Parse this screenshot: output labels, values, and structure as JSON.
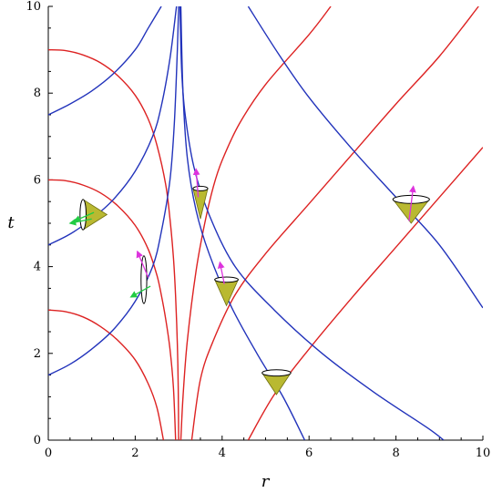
{
  "chart_data": {
    "type": "line",
    "title": "",
    "xlabel": "r",
    "ylabel": "t",
    "xlim": [
      0,
      10
    ],
    "ylim": [
      0,
      10
    ],
    "x_ticks": [
      "0",
      "2",
      "4",
      "6",
      "8",
      "10"
    ],
    "y_ticks": [
      "0",
      "2",
      "4",
      "6",
      "8",
      "10"
    ],
    "grid": false,
    "legend": "none",
    "colors": {
      "red": "#dd2222",
      "blue": "#2233bb",
      "cone_fill": "#b9b931",
      "arrow_green": "#22cc44",
      "arrow_magenta": "#dd33dd"
    },
    "horizon_r": 3,
    "series": [
      {
        "color": "red",
        "points": [
          [
            0,
            9.0
          ],
          [
            0.4,
            8.98
          ],
          [
            0.8,
            8.88
          ],
          [
            1.2,
            8.7
          ],
          [
            1.6,
            8.4
          ],
          [
            2.0,
            7.95
          ],
          [
            2.3,
            7.4
          ],
          [
            2.5,
            6.8
          ],
          [
            2.7,
            5.9
          ],
          [
            2.8,
            5.1
          ],
          [
            2.88,
            4.2
          ],
          [
            2.93,
            3.3
          ],
          [
            2.97,
            2.2
          ],
          [
            2.99,
            1.2
          ],
          [
            3.0,
            0
          ]
        ]
      },
      {
        "color": "red",
        "points": [
          [
            0,
            6.0
          ],
          [
            0.4,
            5.98
          ],
          [
            0.8,
            5.88
          ],
          [
            1.2,
            5.7
          ],
          [
            1.6,
            5.4
          ],
          [
            2.0,
            4.95
          ],
          [
            2.3,
            4.4
          ],
          [
            2.5,
            3.8
          ],
          [
            2.6,
            3.35
          ],
          [
            2.7,
            2.8
          ],
          [
            2.8,
            2.1
          ],
          [
            2.88,
            1.2
          ],
          [
            2.93,
            0
          ]
        ]
      },
      {
        "color": "red",
        "points": [
          [
            0,
            3.0
          ],
          [
            0.4,
            2.96
          ],
          [
            0.8,
            2.84
          ],
          [
            1.2,
            2.62
          ],
          [
            1.6,
            2.3
          ],
          [
            2.0,
            1.85
          ],
          [
            2.3,
            1.3
          ],
          [
            2.5,
            0.75
          ],
          [
            2.65,
            0
          ]
        ]
      },
      {
        "color": "red",
        "points": [
          [
            3.05,
            0
          ],
          [
            3.1,
            1.0
          ],
          [
            3.2,
            2.3
          ],
          [
            3.4,
            3.9
          ],
          [
            3.6,
            5.0
          ],
          [
            3.8,
            5.85
          ],
          [
            4.0,
            6.45
          ],
          [
            4.4,
            7.3
          ],
          [
            5.0,
            8.2
          ],
          [
            6.0,
            9.35
          ],
          [
            6.5,
            10.0
          ]
        ]
      },
      {
        "color": "red",
        "points": [
          [
            3.3,
            0
          ],
          [
            3.5,
            1.4
          ],
          [
            3.8,
            2.3
          ],
          [
            4.3,
            3.35
          ],
          [
            5.0,
            4.3
          ],
          [
            6.0,
            5.45
          ],
          [
            7.0,
            6.6
          ],
          [
            8.0,
            7.75
          ],
          [
            9.0,
            8.85
          ],
          [
            9.9,
            10.0
          ]
        ]
      },
      {
        "color": "red",
        "points": [
          [
            4.6,
            0
          ],
          [
            5.2,
            1.05
          ],
          [
            6.0,
            2.1
          ],
          [
            7.0,
            3.3
          ],
          [
            8.0,
            4.45
          ],
          [
            9.0,
            5.6
          ],
          [
            10.0,
            6.75
          ]
        ]
      },
      {
        "color": "blue",
        "points": [
          [
            0,
            7.5
          ],
          [
            0.5,
            7.75
          ],
          [
            1.0,
            8.05
          ],
          [
            1.5,
            8.45
          ],
          [
            2.0,
            9.0
          ],
          [
            2.3,
            9.5
          ],
          [
            2.6,
            10.0
          ]
        ]
      },
      {
        "color": "blue",
        "points": [
          [
            0,
            4.5
          ],
          [
            0.5,
            4.75
          ],
          [
            1.0,
            5.1
          ],
          [
            1.5,
            5.55
          ],
          [
            2.0,
            6.2
          ],
          [
            2.4,
            7.0
          ],
          [
            2.6,
            7.7
          ],
          [
            2.8,
            8.8
          ],
          [
            2.95,
            10.0
          ]
        ]
      },
      {
        "color": "blue",
        "points": [
          [
            0,
            1.5
          ],
          [
            0.5,
            1.75
          ],
          [
            1.0,
            2.1
          ],
          [
            1.5,
            2.55
          ],
          [
            2.0,
            3.2
          ],
          [
            2.4,
            4.0
          ],
          [
            2.6,
            4.8
          ],
          [
            2.8,
            6.0
          ],
          [
            2.9,
            7.3
          ],
          [
            2.97,
            9.0
          ],
          [
            3.0,
            10.0
          ]
        ]
      },
      {
        "color": "blue",
        "points": [
          [
            3.05,
            10.0
          ],
          [
            3.1,
            8.0
          ],
          [
            3.2,
            6.5
          ],
          [
            3.4,
            5.3
          ],
          [
            3.7,
            4.3
          ],
          [
            4.2,
            3.1
          ],
          [
            4.8,
            2.0
          ],
          [
            5.4,
            1.0
          ],
          [
            5.9,
            0
          ]
        ]
      },
      {
        "color": "blue",
        "points": [
          [
            3.03,
            10.0
          ],
          [
            3.07,
            8.5
          ],
          [
            3.15,
            7.5
          ],
          [
            3.35,
            6.3
          ],
          [
            3.7,
            5.2
          ],
          [
            4.3,
            4.0
          ],
          [
            5.2,
            3.0
          ],
          [
            6.3,
            2.0
          ],
          [
            7.5,
            1.1
          ],
          [
            8.7,
            0.3
          ],
          [
            9.1,
            0
          ]
        ]
      },
      {
        "color": "blue",
        "points": [
          [
            4.6,
            10.0
          ],
          [
            5.3,
            8.9
          ],
          [
            6.0,
            7.9
          ],
          [
            7.0,
            6.7
          ],
          [
            8.0,
            5.6
          ],
          [
            9.0,
            4.5
          ],
          [
            10.0,
            3.05
          ]
        ]
      }
    ],
    "light_cones": [
      {
        "apex": [
          1.35,
          5.2
        ],
        "axis": "horizontal",
        "open_r": 0.8,
        "half_width": 0.35,
        "arrows": [
          [
            [
              1.0,
              5.1
            ],
            [
              0.5,
              5.0
            ]
          ],
          [
            [
              1.05,
              5.25
            ],
            [
              0.6,
              5.05
            ]
          ]
        ],
        "arrow_color": "arrow_green"
      },
      {
        "apex": [
          2.25,
          3.7
        ],
        "axis": "vertical",
        "open_r": 2.2,
        "half_width": 0.55,
        "arrows": [
          [
            [
              2.3,
              3.75
            ],
            [
              2.05,
              4.35
            ]
          ],
          [
            [
              2.35,
              3.55
            ],
            [
              1.9,
              3.3
            ]
          ]
        ],
        "arrow_color": "mixed"
      },
      {
        "apex": [
          3.5,
          5.1
        ],
        "axis": "vertical-up",
        "open_t": 5.8,
        "half_width": 0.17,
        "arrows": [
          [
            [
              3.45,
              5.6
            ],
            [
              3.4,
              6.25
            ]
          ]
        ],
        "arrow_color": "arrow_magenta"
      },
      {
        "apex": [
          4.1,
          3.1
        ],
        "axis": "vertical-up",
        "open_t": 3.7,
        "half_width": 0.27,
        "arrows": [
          [
            [
              4.05,
              3.6
            ],
            [
              3.95,
              4.1
            ]
          ]
        ],
        "arrow_color": "arrow_magenta"
      },
      {
        "apex": [
          5.25,
          1.05
        ],
        "axis": "vertical-up",
        "open_t": 1.55,
        "half_width": 0.33,
        "arrows": [],
        "arrow_color": "none"
      },
      {
        "apex": [
          8.35,
          5.0
        ],
        "axis": "vertical-up",
        "open_t": 5.55,
        "half_width": 0.42,
        "arrows": [
          [
            [
              8.3,
              5.05
            ],
            [
              8.4,
              5.85
            ]
          ]
        ],
        "arrow_color": "arrow_magenta"
      }
    ]
  }
}
